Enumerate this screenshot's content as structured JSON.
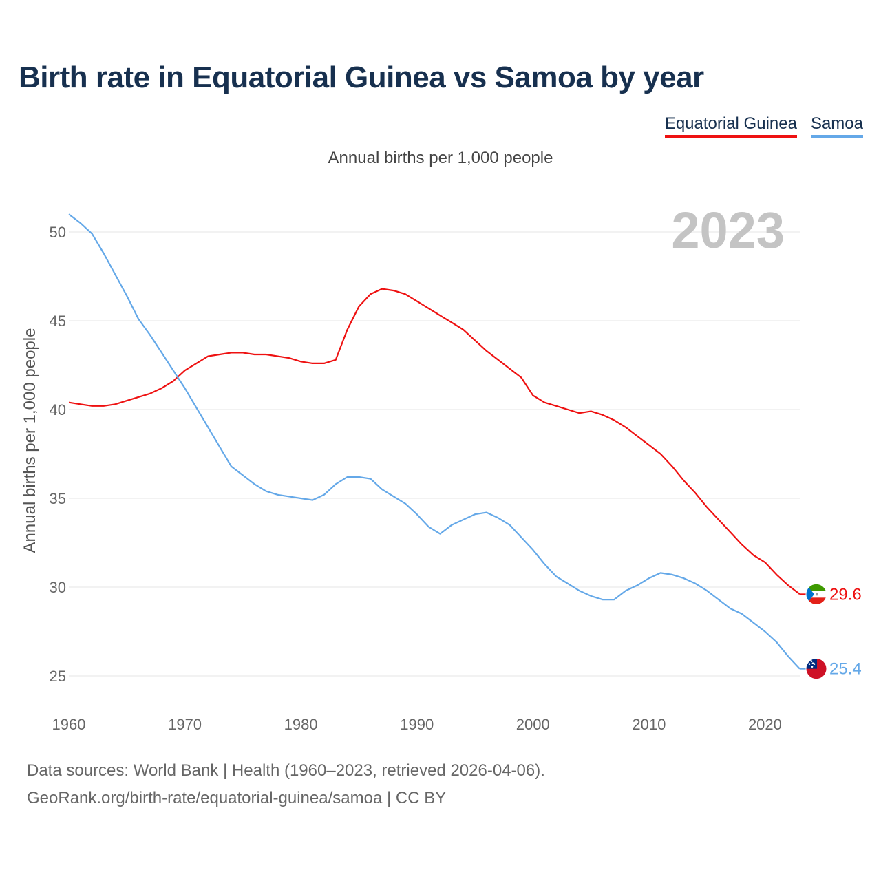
{
  "title": "Birth rate in Equatorial Guinea vs Samoa by year",
  "subtitle": "Annual births per 1,000 people",
  "legend": [
    {
      "label": "Equatorial Guinea",
      "color": "#ee1111"
    },
    {
      "label": "Samoa",
      "color": "#64a8e8"
    }
  ],
  "source_line1": "Data sources: World Bank | Health (1960–2023, retrieved 2026-04-06).",
  "source_line2": "GeoRank.org/birth-rate/equatorial-guinea/samoa | CC BY",
  "chart_data": {
    "type": "line",
    "title": "Birth rate in Equatorial Guinea vs Samoa by year",
    "ylabel": "Annual births per 1,000 people",
    "xlabel": "",
    "year_label": "2023",
    "xlim": [
      1960,
      2023
    ],
    "ylim": [
      24,
      51
    ],
    "xticks": [
      1960,
      1970,
      1980,
      1990,
      2000,
      2010,
      2020
    ],
    "yticks": [
      25,
      30,
      35,
      40,
      45,
      50
    ],
    "grid": true,
    "x": [
      1960,
      1961,
      1962,
      1963,
      1964,
      1965,
      1966,
      1967,
      1968,
      1969,
      1970,
      1971,
      1972,
      1973,
      1974,
      1975,
      1976,
      1977,
      1978,
      1979,
      1980,
      1981,
      1982,
      1983,
      1984,
      1985,
      1986,
      1987,
      1988,
      1989,
      1990,
      1991,
      1992,
      1993,
      1994,
      1995,
      1996,
      1997,
      1998,
      1999,
      2000,
      2001,
      2002,
      2003,
      2004,
      2005,
      2006,
      2007,
      2008,
      2009,
      2010,
      2011,
      2012,
      2013,
      2014,
      2015,
      2016,
      2017,
      2018,
      2019,
      2020,
      2021,
      2022,
      2023
    ],
    "series": [
      {
        "name": "Equatorial Guinea",
        "color": "#ee1111",
        "end_label": "29.6",
        "values": [
          40.4,
          40.3,
          40.2,
          40.2,
          40.3,
          40.5,
          40.7,
          40.9,
          41.2,
          41.6,
          42.2,
          42.6,
          43.0,
          43.1,
          43.2,
          43.2,
          43.1,
          43.1,
          43.0,
          42.9,
          42.7,
          42.6,
          42.6,
          42.8,
          44.5,
          45.8,
          46.5,
          46.8,
          46.7,
          46.5,
          46.1,
          45.7,
          45.3,
          44.9,
          44.5,
          43.9,
          43.3,
          42.8,
          42.3,
          41.8,
          40.8,
          40.4,
          40.2,
          40.0,
          39.8,
          39.9,
          39.7,
          39.4,
          39.0,
          38.5,
          38.0,
          37.5,
          36.8,
          36.0,
          35.3,
          34.5,
          33.8,
          33.1,
          32.4,
          31.8,
          31.4,
          30.7,
          30.1,
          29.6
        ]
      },
      {
        "name": "Samoa",
        "color": "#64a8e8",
        "end_label": "25.4",
        "values": [
          51.0,
          50.5,
          49.9,
          48.8,
          47.6,
          46.4,
          45.1,
          44.2,
          43.2,
          42.2,
          41.2,
          40.1,
          39.0,
          37.9,
          36.8,
          36.3,
          35.8,
          35.4,
          35.2,
          35.1,
          35.0,
          34.9,
          35.2,
          35.8,
          36.2,
          36.2,
          36.1,
          35.5,
          35.1,
          34.7,
          34.1,
          33.4,
          33.0,
          33.5,
          33.8,
          34.1,
          34.2,
          33.9,
          33.5,
          32.8,
          32.1,
          31.3,
          30.6,
          30.2,
          29.8,
          29.5,
          29.3,
          29.3,
          29.8,
          30.1,
          30.5,
          30.8,
          30.7,
          30.5,
          30.2,
          29.8,
          29.3,
          28.8,
          28.5,
          28.0,
          27.5,
          26.9,
          26.1,
          25.4
        ]
      }
    ]
  }
}
